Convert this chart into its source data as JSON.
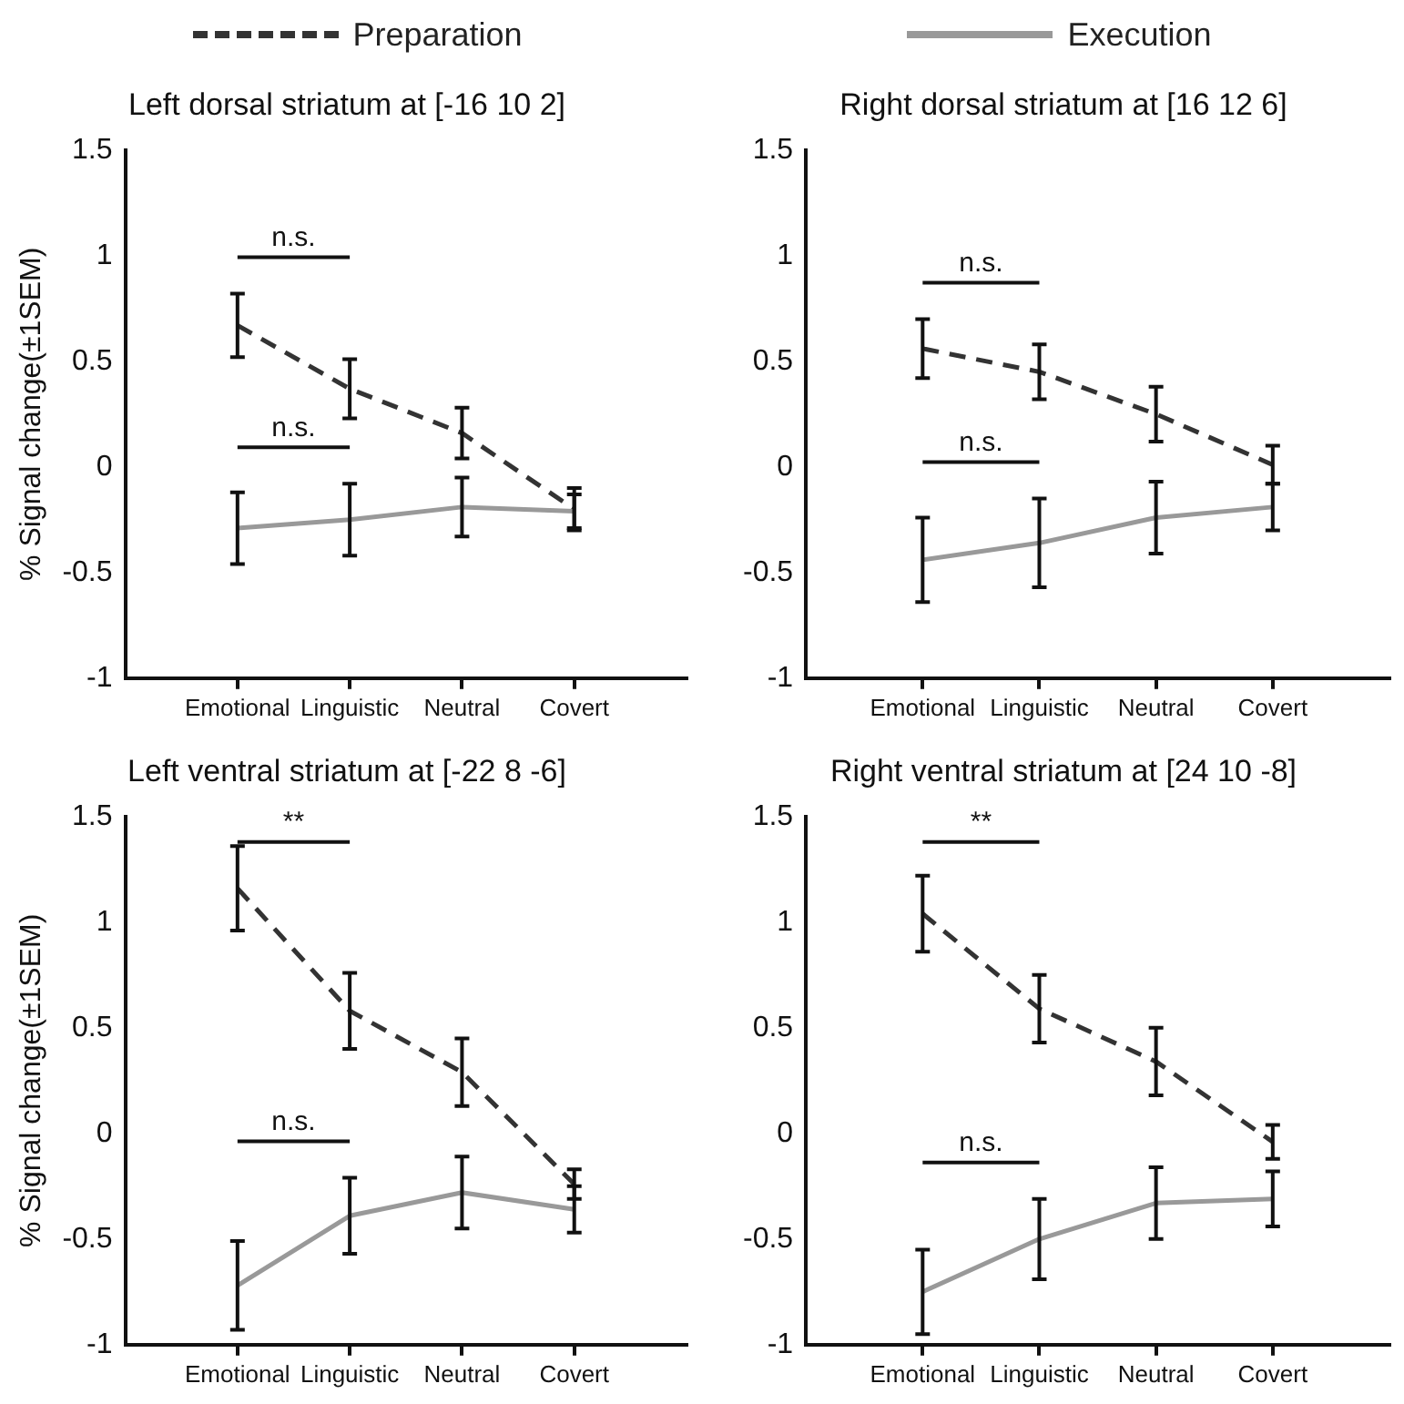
{
  "chart_data": [
    {
      "type": "line",
      "title": "Left dorsal striatum at [-16 10 2]",
      "ylabel": "% Signal change(±1SEM)",
      "categories": [
        "Emotional",
        "Linguistic",
        "Neutral",
        "Covert"
      ],
      "ylim": [
        -1,
        1.5
      ],
      "yticks": [
        -1,
        -0.5,
        0,
        0.5,
        1,
        1.5
      ],
      "legend": "top",
      "marker": "none",
      "series": [
        {
          "name": "Preparation",
          "color": "#333333",
          "line_style": "dashed",
          "values": [
            0.67,
            0.37,
            0.16,
            -0.2
          ],
          "errors": [
            0.15,
            0.14,
            0.12,
            0.1
          ]
        },
        {
          "name": "Execution",
          "color": "#999999",
          "line_style": "solid",
          "values": [
            -0.29,
            -0.25,
            -0.19,
            -0.21
          ],
          "errors": [
            0.17,
            0.17,
            0.14,
            0.08
          ]
        }
      ],
      "annotations": [
        "n.s.",
        "n.s."
      ]
    },
    {
      "type": "line",
      "title": "Right dorsal striatum at [16 12 6]",
      "categories": [
        "Emotional",
        "Linguistic",
        "Neutral",
        "Covert"
      ],
      "ylim": [
        -1,
        1.5
      ],
      "yticks": [
        -1,
        -0.5,
        0,
        0.5,
        1,
        1.5
      ],
      "marker": "none",
      "series": [
        {
          "color": "#333333",
          "line_style": "dashed",
          "values": [
            0.56,
            0.45,
            0.25,
            0.01
          ],
          "errors": [
            0.14,
            0.13,
            0.13,
            0.09
          ]
        },
        {
          "color": "#999999",
          "line_style": "solid",
          "values": [
            -0.44,
            -0.36,
            -0.24,
            -0.19
          ],
          "errors": [
            0.2,
            0.21,
            0.17,
            0.11
          ]
        }
      ],
      "annotations": [
        "n.s.",
        "n.s."
      ]
    },
    {
      "type": "line",
      "title": "Left ventral striatum at [-22 8 -6]",
      "ylabel": "% Signal change(±1SEM)",
      "categories": [
        "Emotional",
        "Linguistic",
        "Neutral",
        "Covert"
      ],
      "ylim": [
        -1,
        1.5
      ],
      "yticks": [
        -1,
        -0.5,
        0,
        0.5,
        1,
        1.5
      ],
      "marker": "none",
      "series": [
        {
          "color": "#333333",
          "line_style": "dashed",
          "values": [
            1.16,
            0.58,
            0.29,
            -0.24
          ],
          "errors": [
            0.2,
            0.18,
            0.16,
            0.07
          ]
        },
        {
          "color": "#999999",
          "line_style": "solid",
          "values": [
            -0.72,
            -0.39,
            -0.28,
            -0.36
          ],
          "errors": [
            0.21,
            0.18,
            0.17,
            0.11
          ]
        }
      ],
      "annotations": [
        "**",
        "n.s."
      ]
    },
    {
      "type": "line",
      "title": "Right ventral striatum at [24 10 -8]",
      "categories": [
        "Emotional",
        "Linguistic",
        "Neutral",
        "Covert"
      ],
      "ylim": [
        -1,
        1.5
      ],
      "yticks": [
        -1,
        -0.5,
        0,
        0.5,
        1,
        1.5
      ],
      "marker": "none",
      "series": [
        {
          "color": "#333333",
          "line_style": "dashed",
          "values": [
            1.04,
            0.59,
            0.34,
            -0.04
          ],
          "errors": [
            0.18,
            0.16,
            0.16,
            0.08
          ]
        },
        {
          "color": "#999999",
          "line_style": "solid",
          "values": [
            -0.75,
            -0.5,
            -0.33,
            -0.31
          ],
          "errors": [
            0.2,
            0.19,
            0.17,
            0.13
          ]
        }
      ],
      "annotations": [
        "**",
        "n.s."
      ]
    }
  ]
}
